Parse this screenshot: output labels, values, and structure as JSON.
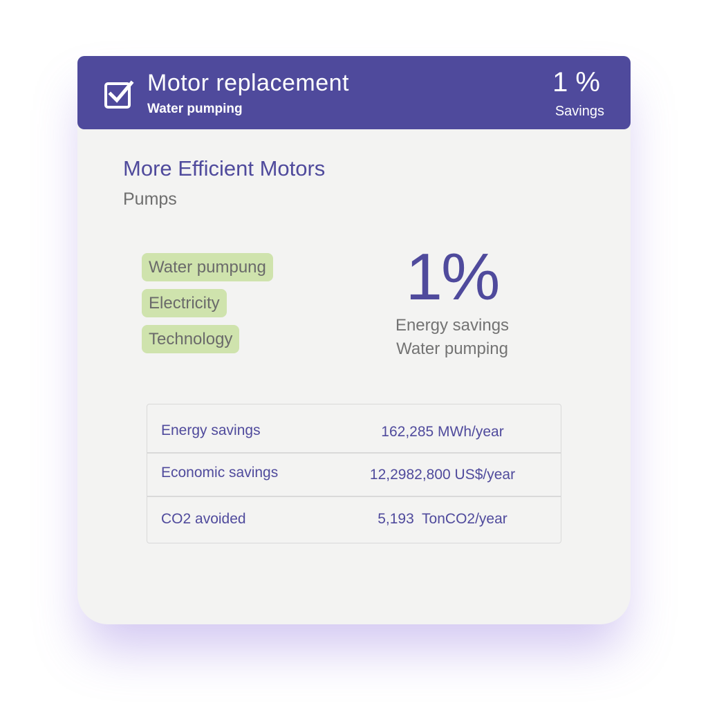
{
  "header": {
    "title": "Motor replacement",
    "subtitle": "Water pumping",
    "percent": "1 %",
    "percent_label": "Savings",
    "icon": "checkbox-checked-icon"
  },
  "main": {
    "title": "More Efficient Motors",
    "subtitle": "Pumps",
    "tags": [
      "Water pumpung",
      "Electricity",
      "Technology"
    ],
    "big_percent": "1%",
    "big_label_1": "Energy savings",
    "big_label_2": "Water pumping"
  },
  "metrics": [
    {
      "label": "Energy savings",
      "value": "162,285 MWh/year"
    },
    {
      "label": "Economic savings",
      "value": "12,2982,800 US$/year"
    },
    {
      "label": "CO2 avoided",
      "value": "5,193  TonCO2/year"
    }
  ],
  "colors": {
    "brand": "#4f4a9c",
    "tag_bg": "#cfe3ad",
    "card_bg": "#f3f3f2"
  }
}
